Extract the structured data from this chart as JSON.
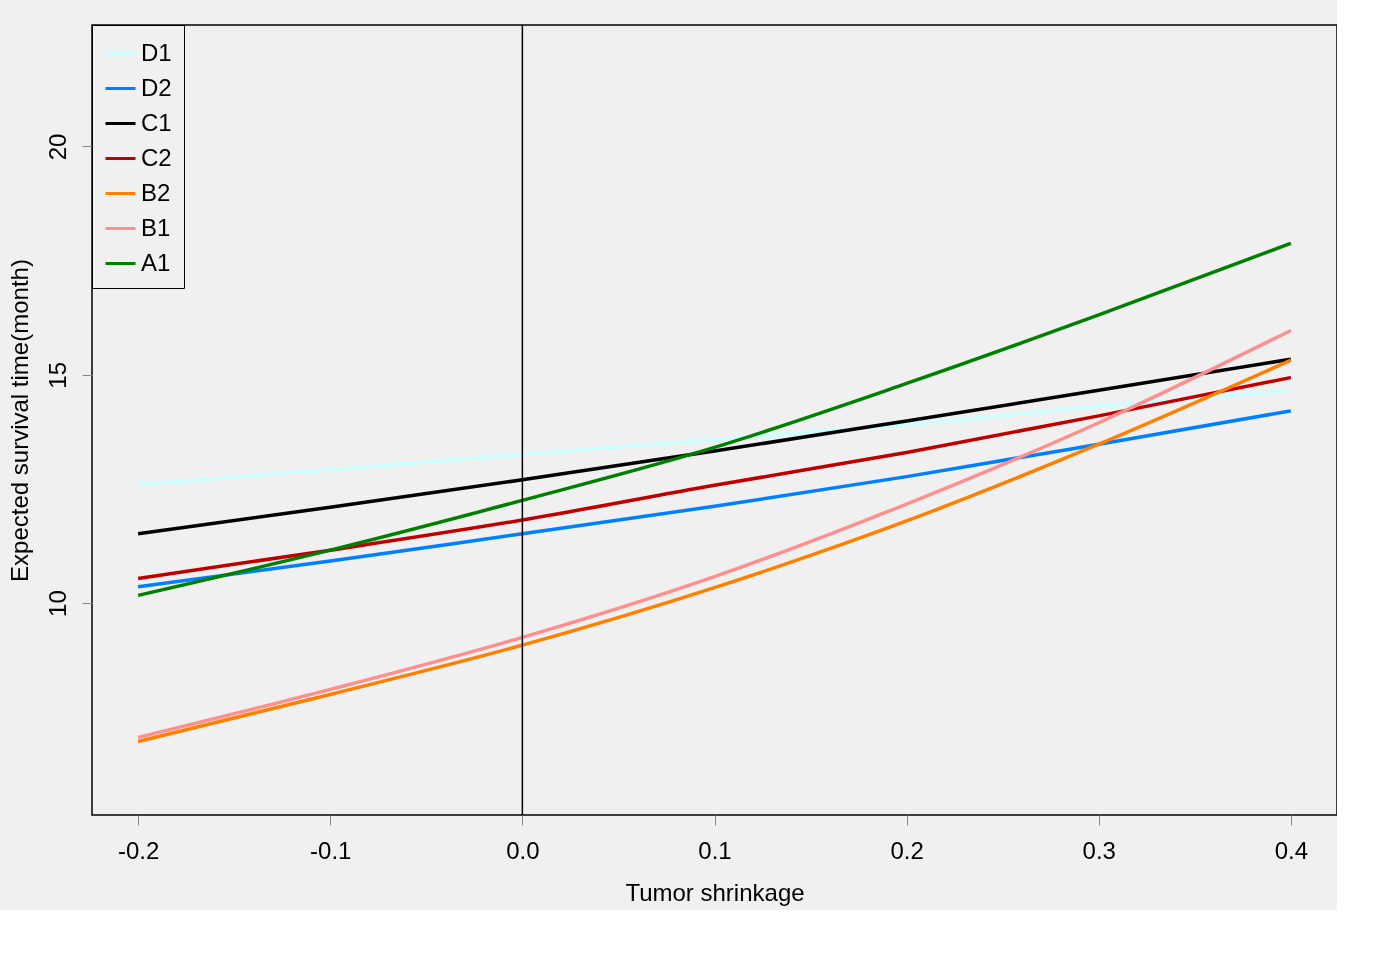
{
  "chart_data": {
    "type": "line",
    "xlabel": "Tumor shrinkage",
    "ylabel": "Expected survival time(month)",
    "x": [
      -0.2,
      -0.1,
      0,
      0.1,
      0.2,
      0.3,
      0.4
    ],
    "xlim": [
      -0.224,
      0.424
    ],
    "xticks": [
      -0.2,
      -0.1,
      {
        "value": 0,
        "label": "0.0"
      },
      0.1,
      0.2,
      0.3,
      0.4
    ],
    "ylim": [
      5.36,
      22.66
    ],
    "yticks": [
      10,
      15,
      20
    ],
    "series": [
      {
        "name": "D1",
        "color": "#ccffff",
        "values": [
          12.6,
          12.92,
          13.26,
          13.58,
          13.91,
          14.31,
          14.66
        ]
      },
      {
        "name": "D2",
        "color": "#0080ff",
        "values": [
          10.36,
          10.92,
          11.52,
          12.12,
          12.77,
          13.48,
          14.21
        ]
      },
      {
        "name": "C1",
        "color": "#000000",
        "values": [
          11.52,
          12.1,
          12.7,
          13.33,
          13.99,
          14.66,
          15.34
        ]
      },
      {
        "name": "C2",
        "color": "#c00000",
        "values": [
          10.54,
          11.16,
          11.82,
          12.58,
          13.3,
          14.1,
          14.94
        ]
      },
      {
        "name": "B2",
        "color": "#ff8000",
        "values": [
          6.97,
          8.0,
          9.08,
          10.34,
          11.8,
          13.48,
          15.32
        ]
      },
      {
        "name": "B1",
        "color": "#ff8f8f",
        "values": [
          7.06,
          8.11,
          9.25,
          10.58,
          12.17,
          13.95,
          15.97
        ]
      },
      {
        "name": "A1",
        "color": "#008000",
        "values": [
          10.17,
          11.16,
          12.25,
          13.41,
          14.81,
          16.31,
          17.88
        ]
      }
    ],
    "ref_lines": [
      {
        "axis": "x",
        "value": 0,
        "color": "#000000"
      }
    ],
    "grid": false,
    "legend": "top left",
    "marker": "none",
    "line_style": "solid"
  }
}
